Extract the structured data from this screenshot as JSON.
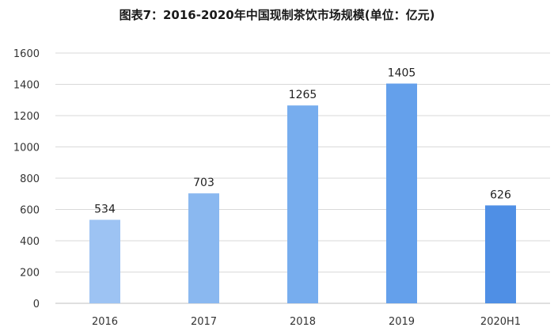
{
  "chart_data": {
    "type": "bar",
    "title": "图表7：2016-2020年中国现制茶饮市场规模(单位：亿元)",
    "categories": [
      "2016",
      "2017",
      "2018",
      "2019",
      "2020H1"
    ],
    "values": [
      534,
      703,
      1265,
      1405,
      626
    ],
    "data_labels": [
      "534",
      "703",
      "1265",
      "1405",
      "626"
    ],
    "ylim": [
      0,
      1600
    ],
    "yticks": [
      "0",
      "200",
      "400",
      "600",
      "800",
      "1000",
      "1200",
      "1400",
      "1600"
    ],
    "grid": true,
    "legend": "none",
    "bar_colors": [
      "#9dc3f3",
      "#8ab8f0",
      "#77adee",
      "#64a0eb",
      "#4f8fe5"
    ]
  }
}
